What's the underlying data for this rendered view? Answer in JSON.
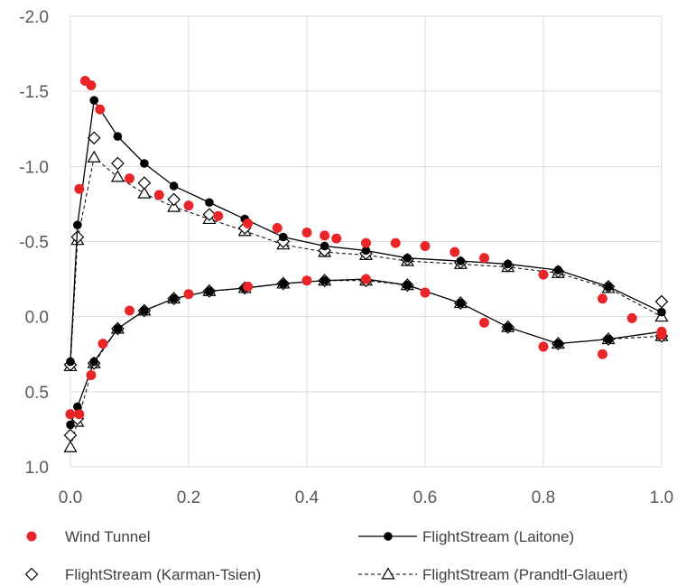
{
  "chart_data": {
    "type": "scatter",
    "title": "",
    "xlabel": "",
    "ylabel": "",
    "xlim": [
      0.0,
      1.0
    ],
    "ylim": [
      -2.0,
      1.0
    ],
    "y_reversed": true,
    "grid": true,
    "legend_position": "bottom",
    "x_ticks": [
      "0.0",
      "0.2",
      "0.4",
      "0.6",
      "0.8",
      "1.0"
    ],
    "y_ticks": [
      "-2.0",
      "-1.5",
      "-1.0",
      "-0.5",
      "0.0",
      "0.5",
      "1.0"
    ],
    "series": [
      {
        "name": "Wind Tunnel",
        "style": "markers",
        "marker": "filled-circle",
        "color": "#e8262a",
        "x": [
          0.0,
          0.015,
          0.025,
          0.035,
          0.05,
          0.1,
          0.15,
          0.2,
          0.25,
          0.3,
          0.35,
          0.4,
          0.43,
          0.45,
          0.5,
          0.55,
          0.6,
          0.65,
          0.7,
          0.8,
          0.9,
          0.95,
          1.0,
          0.0,
          0.015,
          0.035,
          0.055,
          0.1,
          0.2,
          0.3,
          0.4,
          0.5,
          0.6,
          0.7,
          0.8,
          0.9,
          1.0
        ],
        "y": [
          0.65,
          -0.85,
          -1.57,
          -1.54,
          -1.38,
          -0.92,
          -0.81,
          -0.74,
          -0.67,
          -0.62,
          -0.59,
          -0.56,
          -0.54,
          -0.52,
          -0.49,
          -0.49,
          -0.47,
          -0.43,
          -0.39,
          -0.28,
          -0.12,
          0.01,
          0.12,
          0.65,
          0.65,
          0.39,
          0.18,
          -0.04,
          -0.15,
          -0.2,
          -0.24,
          -0.25,
          -0.16,
          0.04,
          0.2,
          0.25,
          0.1
        ]
      },
      {
        "name": "FlightStream (Laitone)",
        "style": "line-markers",
        "marker": "filled-circle",
        "color": "#000000",
        "upper": {
          "x": [
            0.0,
            0.012,
            0.04,
            0.08,
            0.125,
            0.175,
            0.235,
            0.295,
            0.36,
            0.43,
            0.5,
            0.57,
            0.66,
            0.74,
            0.825,
            0.91,
            1.0
          ],
          "y": [
            0.3,
            -0.61,
            -1.44,
            -1.2,
            -1.02,
            -0.87,
            -0.76,
            -0.65,
            -0.53,
            -0.47,
            -0.44,
            -0.39,
            -0.37,
            -0.35,
            -0.31,
            -0.2,
            -0.03
          ]
        },
        "lower": {
          "x": [
            0.0,
            0.012,
            0.04,
            0.08,
            0.125,
            0.175,
            0.235,
            0.295,
            0.36,
            0.43,
            0.5,
            0.57,
            0.66,
            0.74,
            0.825,
            0.91,
            1.0
          ],
          "y": [
            0.72,
            0.6,
            0.3,
            0.08,
            -0.04,
            -0.12,
            -0.17,
            -0.19,
            -0.22,
            -0.24,
            -0.25,
            -0.21,
            -0.09,
            0.07,
            0.18,
            0.15,
            0.1
          ]
        }
      },
      {
        "name": "FlightStream (Karman-Tsien)",
        "style": "markers",
        "marker": "open-diamond",
        "color": "#000000",
        "upper": {
          "x": [
            0.0,
            0.012,
            0.04,
            0.08,
            0.125,
            0.175,
            0.235,
            0.295,
            0.36,
            0.43,
            0.5,
            0.57,
            0.66,
            0.74,
            0.825,
            0.91,
            1.0
          ],
          "y": [
            0.32,
            -0.53,
            -1.19,
            -1.02,
            -0.89,
            -0.78,
            -0.68,
            -0.59,
            -0.5,
            -0.44,
            -0.42,
            -0.38,
            -0.36,
            -0.34,
            -0.3,
            -0.2,
            -0.1
          ]
        },
        "lower": {
          "x": [
            0.0,
            0.012,
            0.04,
            0.08,
            0.125,
            0.175,
            0.235,
            0.295,
            0.36,
            0.43,
            0.5,
            0.57,
            0.66,
            0.74,
            0.825,
            0.91,
            1.0
          ],
          "y": [
            0.79,
            0.68,
            0.31,
            0.08,
            -0.04,
            -0.12,
            -0.17,
            -0.19,
            -0.22,
            -0.24,
            -0.24,
            -0.21,
            -0.09,
            0.07,
            0.18,
            0.15,
            0.13
          ]
        }
      },
      {
        "name": "FlightStream (Prandtl-Glauert)",
        "style": "dashed-line-markers",
        "marker": "open-triangle",
        "color": "#000000",
        "upper": {
          "x": [
            0.0,
            0.012,
            0.04,
            0.08,
            0.125,
            0.175,
            0.235,
            0.295,
            0.36,
            0.43,
            0.5,
            0.57,
            0.66,
            0.74,
            0.825,
            0.91,
            1.0
          ],
          "y": [
            0.33,
            -0.51,
            -1.06,
            -0.93,
            -0.82,
            -0.73,
            -0.65,
            -0.57,
            -0.48,
            -0.43,
            -0.41,
            -0.37,
            -0.35,
            -0.33,
            -0.29,
            -0.19,
            0.0
          ]
        },
        "lower": {
          "x": [
            0.0,
            0.012,
            0.04,
            0.08,
            0.125,
            0.175,
            0.235,
            0.295,
            0.36,
            0.43,
            0.5,
            0.57,
            0.66,
            0.74,
            0.825,
            0.91,
            1.0
          ],
          "y": [
            0.87,
            0.7,
            0.31,
            0.08,
            -0.04,
            -0.12,
            -0.17,
            -0.19,
            -0.22,
            -0.24,
            -0.24,
            -0.21,
            -0.09,
            0.07,
            0.18,
            0.15,
            0.13
          ]
        }
      }
    ]
  }
}
